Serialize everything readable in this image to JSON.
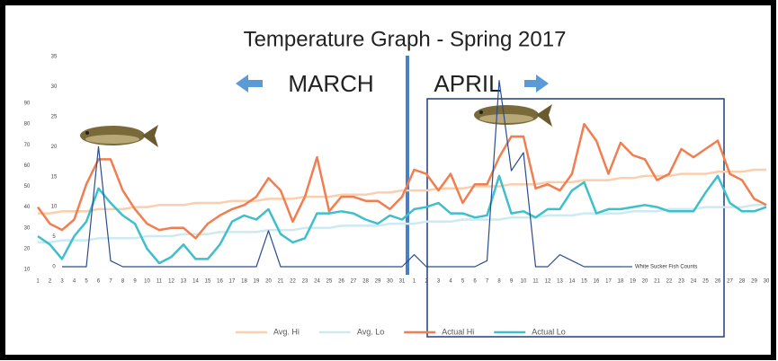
{
  "chart_data": {
    "type": "line",
    "title": "Temperature Graph - Spring 2017",
    "annotations": [
      "MARCH",
      "APRIL"
    ],
    "categories": [
      "1",
      "2",
      "3",
      "4",
      "5",
      "6",
      "7",
      "8",
      "9",
      "10",
      "11",
      "12",
      "13",
      "14",
      "15",
      "16",
      "17",
      "18",
      "19",
      "20",
      "21",
      "22",
      "23",
      "24",
      "25",
      "26",
      "27",
      "28",
      "29",
      "30",
      "31",
      "1",
      "2",
      "3",
      "4",
      "5",
      "6",
      "7",
      "8",
      "9",
      "10",
      "11",
      "12",
      "13",
      "14",
      "15",
      "16",
      "17",
      "18",
      "19",
      "20",
      "21",
      "22",
      "23",
      "24",
      "25",
      "26",
      "27",
      "28",
      "29",
      "30"
    ],
    "ylim": [
      10,
      90
    ],
    "yticks": [
      10,
      20,
      30,
      40,
      50,
      60,
      70,
      80,
      90
    ],
    "y2lim": [
      0,
      35
    ],
    "y2ticks": [
      0,
      5,
      10,
      15,
      20,
      25,
      30,
      35
    ],
    "grid": false,
    "series": [
      {
        "name": "Avg. Hi",
        "color": "#f9cfae",
        "values": [
          37,
          37,
          38,
          38,
          38,
          39,
          39,
          39,
          40,
          40,
          41,
          41,
          41,
          42,
          42,
          42,
          43,
          43,
          43,
          44,
          44,
          44,
          45,
          45,
          45,
          46,
          46,
          46,
          47,
          47,
          48,
          48,
          48,
          49,
          49,
          49,
          50,
          50,
          50,
          51,
          51,
          51,
          52,
          52,
          52,
          53,
          53,
          53,
          54,
          54,
          55,
          55,
          55,
          56,
          56,
          56,
          57,
          57,
          57,
          58,
          58
        ]
      },
      {
        "name": "Avg. Lo",
        "color": "#cde9f2",
        "values": [
          23,
          23,
          24,
          24,
          24,
          25,
          25,
          25,
          25,
          26,
          26,
          26,
          27,
          27,
          27,
          28,
          28,
          28,
          28,
          29,
          29,
          29,
          30,
          30,
          30,
          31,
          31,
          31,
          31,
          32,
          32,
          32,
          33,
          33,
          33,
          34,
          34,
          34,
          34,
          35,
          35,
          35,
          36,
          36,
          36,
          37,
          37,
          37,
          37,
          38,
          38,
          38,
          39,
          39,
          39,
          40,
          40,
          40,
          40,
          41,
          41
        ]
      },
      {
        "name": "Actual Hi",
        "color": "#f07e50",
        "values": [
          40,
          32,
          29,
          34,
          51,
          63,
          63,
          48,
          39,
          32,
          29,
          30,
          30,
          25,
          32,
          36,
          39,
          41,
          45,
          54,
          48,
          33,
          45,
          64,
          38,
          45,
          45,
          43,
          43,
          39,
          45,
          58,
          56,
          48,
          56,
          42,
          51,
          51,
          64,
          74,
          74,
          49,
          51,
          48,
          56,
          80,
          72,
          56,
          71,
          65,
          63,
          53,
          56,
          68,
          64,
          68,
          72,
          56,
          53,
          44,
          41
        ]
      },
      {
        "name": "Actual Lo",
        "color": "#3fbfcc",
        "values": [
          26,
          22,
          15,
          26,
          33,
          49,
          42,
          36,
          32,
          20,
          13,
          16,
          22,
          15,
          15,
          22,
          33,
          36,
          34,
          39,
          27,
          23,
          25,
          37,
          37,
          38,
          37,
          34,
          32,
          36,
          34,
          39,
          40,
          42,
          37,
          37,
          35,
          36,
          55,
          37,
          38,
          35,
          39,
          39,
          48,
          52,
          37,
          39,
          39,
          40,
          41,
          40,
          38,
          38,
          38,
          47,
          55,
          42,
          38,
          38,
          40
        ]
      },
      {
        "name": "White Sucker Fish Counts",
        "color": "#2a4d8f",
        "axis": "y2",
        "values": [
          null,
          null,
          0,
          0,
          0,
          20,
          1,
          0,
          0,
          0,
          0,
          0,
          0,
          0,
          0,
          0,
          0,
          0,
          0,
          6,
          0,
          0,
          0,
          0,
          0,
          0,
          0,
          0,
          0,
          0,
          0,
          2,
          0,
          0,
          0,
          0,
          0,
          1,
          31,
          16,
          19,
          0,
          0,
          2,
          1,
          0,
          0,
          0,
          0,
          null,
          null,
          null,
          null,
          null,
          null,
          null,
          null,
          null,
          null,
          null,
          null
        ]
      }
    ]
  }
}
